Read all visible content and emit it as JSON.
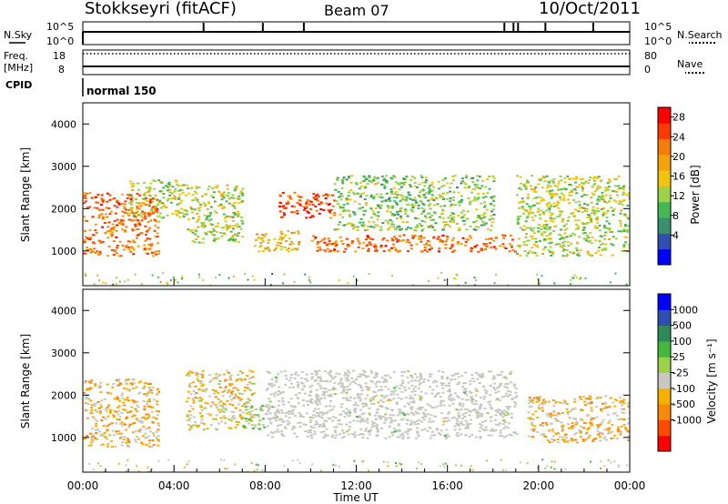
{
  "header": {
    "station": "Stokkseyri (fitACF)",
    "beam": "Beam 07",
    "date": "10/Oct/2011"
  },
  "noise_panel": {
    "left_label": "N.Sky",
    "right_label": "N.Search",
    "left_ticks": [
      "10^5",
      "10^0"
    ],
    "right_ticks": [
      "10^5",
      "10^0"
    ]
  },
  "freq_panel": {
    "left_label_1": "Freq.",
    "left_label_2": "[MHz]",
    "right_label": "Nave",
    "left_ticks": [
      "18",
      "8"
    ],
    "right_ticks": [
      "80",
      "0"
    ]
  },
  "cpid": {
    "label": "CPID",
    "value": "normal 150"
  },
  "time_axis": {
    "title": "Time UT",
    "ticks": [
      "00:00",
      "04:00",
      "08:00",
      "12:00",
      "16:00",
      "20:00",
      "00:00"
    ]
  },
  "chart_data": [
    {
      "type": "heatmap",
      "panel": "power",
      "ylabel": "Slant Range [km]",
      "ylim": [
        180,
        4500
      ],
      "y_ticks": [
        1000,
        2000,
        3000,
        4000
      ],
      "x_range_hours": [
        0,
        24
      ],
      "colorbar": {
        "label": "Power [dB]",
        "ticks": [
          "4",
          "8",
          "12",
          "16",
          "20",
          "24",
          "28"
        ],
        "colors": [
          "#0000ff",
          "#2f4fb0",
          "#3a8f6e",
          "#44b854",
          "#9bd24a",
          "#f2c40e",
          "#f5a20c",
          "#f77d0a",
          "#ff3a00",
          "#ff0000"
        ]
      },
      "echo_regions": [
        {
          "t0": 0.0,
          "t1": 3.3,
          "r0": 900,
          "r1": 2400,
          "level_db": 24
        },
        {
          "t0": 2.0,
          "t1": 4.5,
          "r0": 1800,
          "r1": 2700,
          "level_db": 14
        },
        {
          "t0": 4.5,
          "t1": 7.0,
          "r0": 1200,
          "r1": 2600,
          "level_db": 14
        },
        {
          "t0": 7.5,
          "t1": 9.5,
          "r0": 1000,
          "r1": 1500,
          "level_db": 18
        },
        {
          "t0": 8.5,
          "t1": 11.0,
          "r0": 1800,
          "r1": 2400,
          "level_db": 26
        },
        {
          "t0": 10.0,
          "t1": 19.0,
          "r0": 1000,
          "r1": 1400,
          "level_db": 24
        },
        {
          "t0": 11.0,
          "t1": 18.0,
          "r0": 1500,
          "r1": 2800,
          "level_db": 12
        },
        {
          "t0": 19.0,
          "t1": 24.0,
          "r0": 900,
          "r1": 2800,
          "level_db": 14
        }
      ]
    },
    {
      "type": "heatmap",
      "panel": "velocity",
      "ylabel": "Slant Range [km]",
      "ylim": [
        180,
        4500
      ],
      "y_ticks": [
        1000,
        2000,
        3000,
        4000
      ],
      "x_range_hours": [
        0,
        24
      ],
      "colorbar": {
        "label": "Velocity [m s⁻¹]",
        "ticks": [
          "1000",
          "500",
          "100",
          "25",
          "-25",
          "-100",
          "-500",
          "-1000"
        ],
        "colors": [
          "#0000ff",
          "#2f4fb0",
          "#2e8b57",
          "#44b83c",
          "#9bd24a",
          "#c8c8c0",
          "#f5b000",
          "#f88a0a",
          "#ff4a00",
          "#ff0000"
        ]
      },
      "echo_regions": [
        {
          "t0": 0.0,
          "t1": 3.3,
          "r0": 800,
          "r1": 2400,
          "velocity_ms": -300
        },
        {
          "t0": 4.5,
          "t1": 7.5,
          "r0": 1200,
          "r1": 2600,
          "velocity_ms": -200
        },
        {
          "t0": 7.0,
          "t1": 8.0,
          "r0": 1200,
          "r1": 1800,
          "velocity_ms": 100
        },
        {
          "t0": 8.0,
          "t1": 19.0,
          "r0": 1000,
          "r1": 2600,
          "velocity_ms": 0
        },
        {
          "t0": 19.5,
          "t1": 24.0,
          "r0": 900,
          "r1": 2000,
          "velocity_ms": -300
        }
      ]
    }
  ]
}
